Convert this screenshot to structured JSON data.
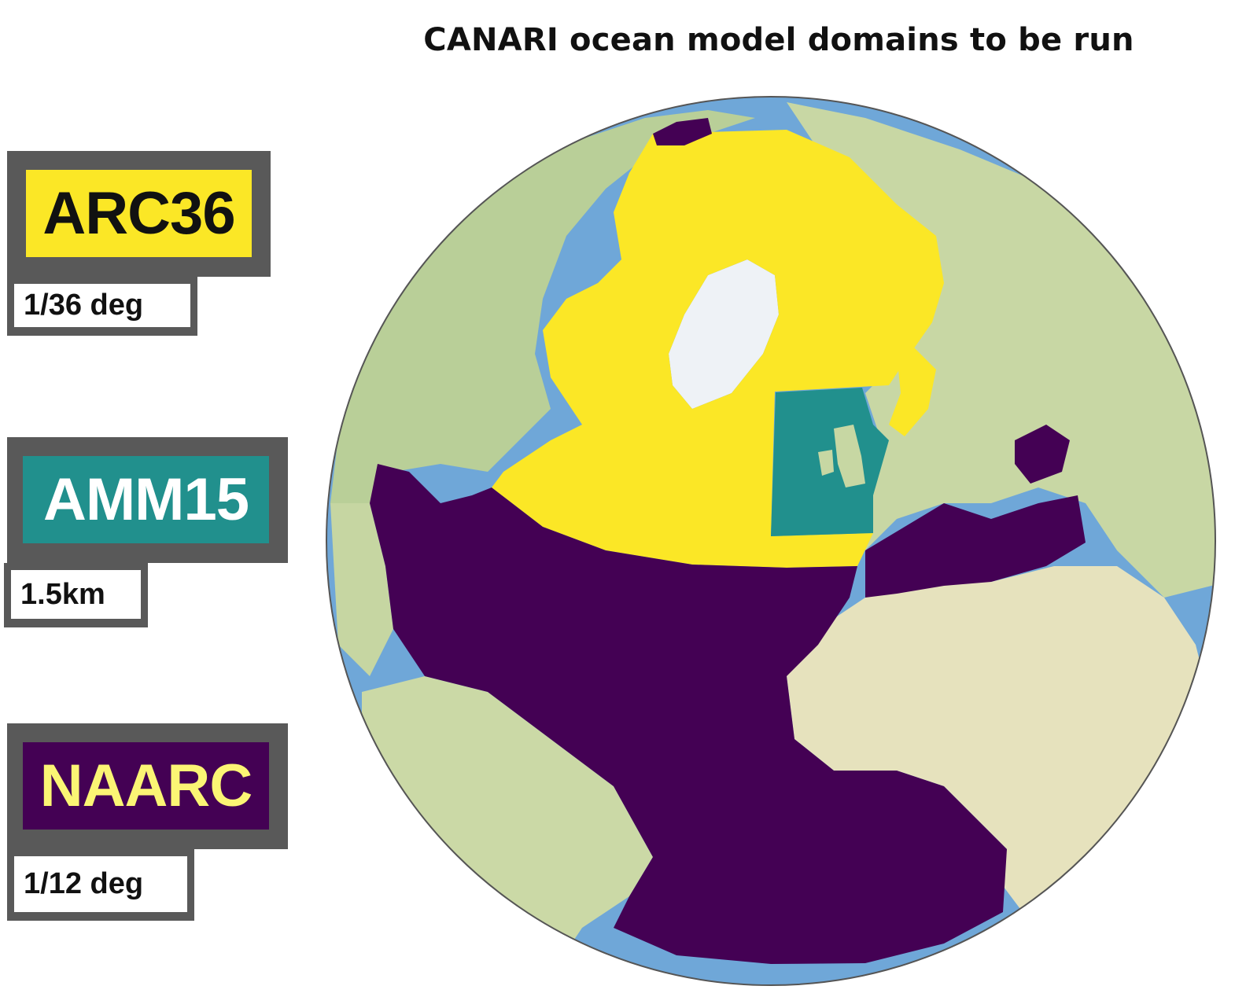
{
  "title": "CANARI ocean model domains to be run",
  "legend": [
    {
      "code": "ARC36",
      "resolution": "1/36 deg",
      "fill_color": "#fbe726",
      "text_color": "#111111"
    },
    {
      "code": "AMM15",
      "resolution": "1.5km",
      "fill_color": "#21908d",
      "text_color": "#ffffff"
    },
    {
      "code": "NAARC",
      "resolution": "1/12 deg",
      "fill_color": "#440154",
      "text_color": "#fbf574"
    }
  ],
  "colors": {
    "ocean": "#6fa7d8",
    "land": "#c9d8a7",
    "ice": "#eef2f6",
    "arc36": "#fbe726",
    "amm15": "#21908d",
    "naarc": "#440154"
  }
}
